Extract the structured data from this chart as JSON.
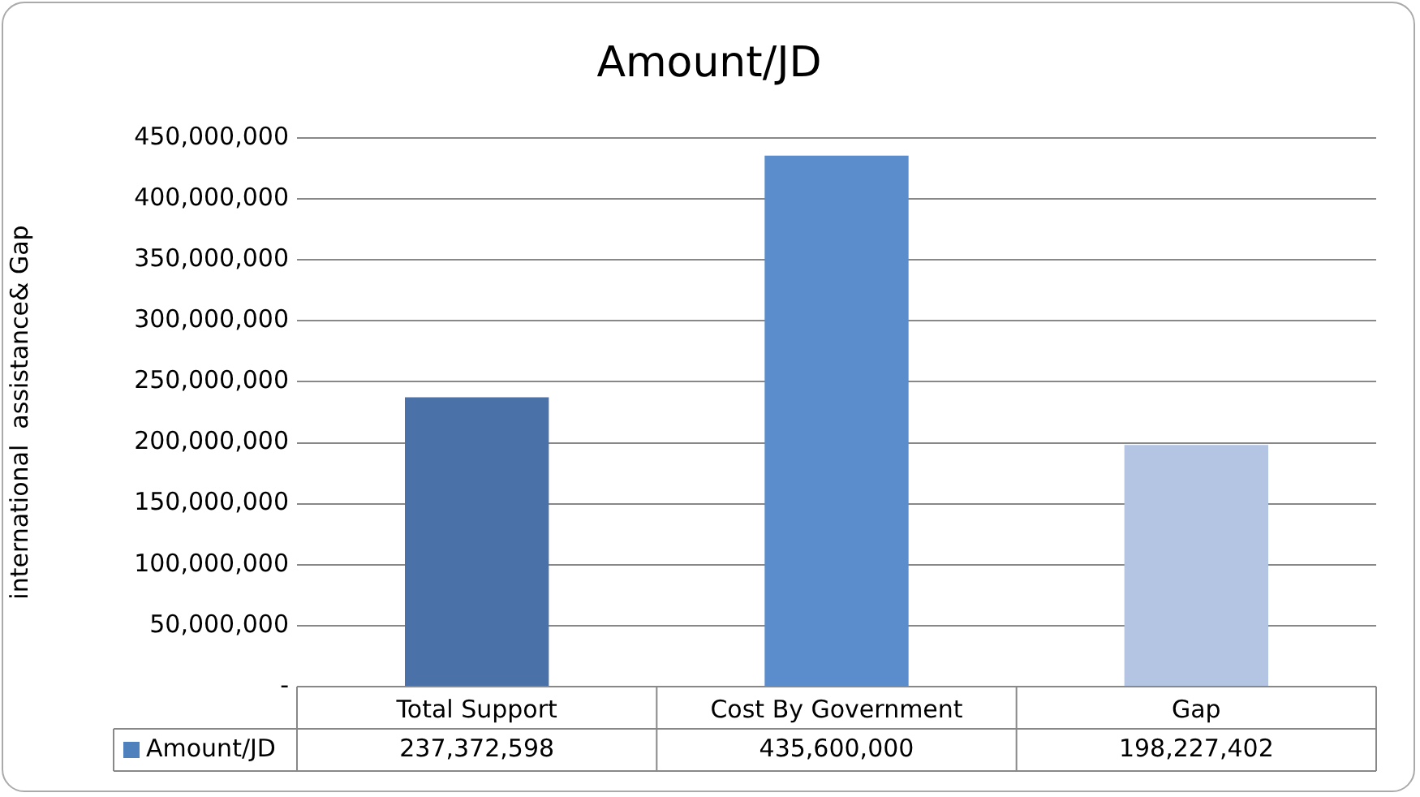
{
  "chart_data": {
    "type": "bar",
    "title": "Amount/JD",
    "ylabel": "international  assistance& Gap",
    "categories": [
      "Total Support",
      "Cost By Government",
      "Gap"
    ],
    "series": [
      {
        "name": "Amount/JD",
        "color": "#4f81bd",
        "colors": [
          "#4a72a8",
          "#5b8ccb",
          "#b3c5e3"
        ],
        "values": [
          237372598,
          435600000,
          198227402
        ],
        "value_labels": [
          "237,372,598",
          "435,600,000",
          "198,227,402"
        ]
      }
    ],
    "ylim": [
      0,
      450000000
    ],
    "yticks": [
      {
        "value": 0,
        "label": "-"
      },
      {
        "value": 50000000,
        "label": "50,000,000"
      },
      {
        "value": 100000000,
        "label": "100,000,000"
      },
      {
        "value": 150000000,
        "label": "150,000,000"
      },
      {
        "value": 200000000,
        "label": "200,000,000"
      },
      {
        "value": 250000000,
        "label": "250,000,000"
      },
      {
        "value": 300000000,
        "label": "300,000,000"
      },
      {
        "value": 350000000,
        "label": "350,000,000"
      },
      {
        "value": 400000000,
        "label": "400,000,000"
      },
      {
        "value": 450000000,
        "label": "450,000,000"
      }
    ],
    "grid": "y",
    "legend": "bottom"
  }
}
